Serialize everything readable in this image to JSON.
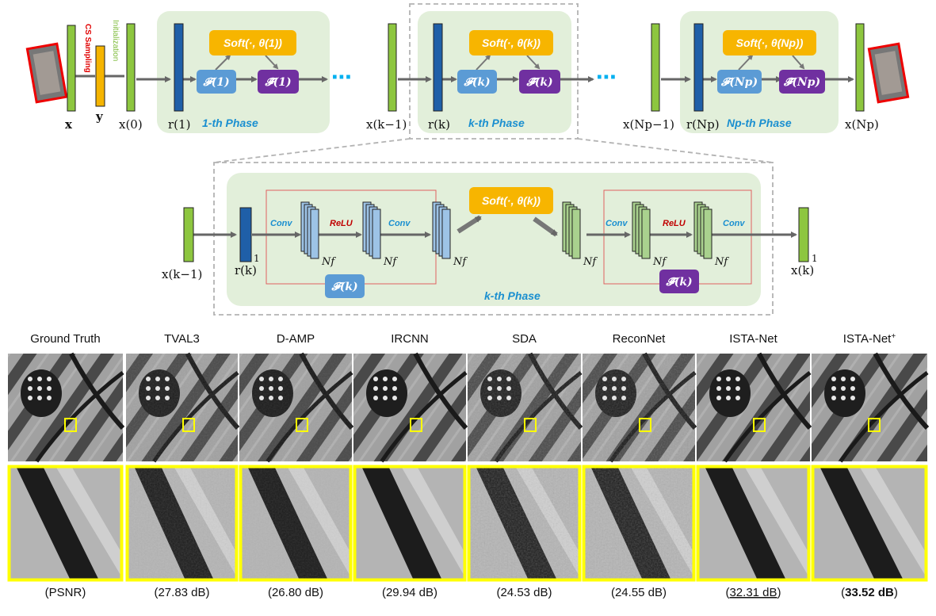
{
  "colors": {
    "phase_bg": "#e2efda",
    "green_bar": "#8dc63f",
    "blue_bar": "#1f5fa8",
    "orange": "#f5b400",
    "soft_box": "#f7b500",
    "fwd_box": "#5b9bd5",
    "inv_box": "#7030a0",
    "phase_text": "#1a8fd0",
    "relu_text": "#c00000",
    "highlight": "#ffff00"
  },
  "top": {
    "labels": {
      "x": "x",
      "y": "y",
      "x0": "x(0)",
      "r1": "r(1)",
      "xk1": "x(k−1)",
      "rk": "r(k)",
      "xnp1": "x(Np−1)",
      "rnp": "r(Np)",
      "xnp": "x(Np)"
    },
    "vert_cs": "CS Sampling",
    "vert_init": "Initialization",
    "ellipsis": "⋯",
    "phases": [
      {
        "title": "1-th Phase",
        "soft": "Soft(·, θ(1))",
        "fwd": "𝓕(1)",
        "inv": "𝓕̃(1)"
      },
      {
        "title": "k-th Phase",
        "soft": "Soft(·, θ(k))",
        "fwd": "𝓕(k)",
        "inv": "𝓕̃(k)"
      },
      {
        "title": "Np-th Phase",
        "soft": "Soft(·, θ(Np))",
        "fwd": "𝓕(Np)",
        "inv": "𝓕̃(Np)"
      }
    ]
  },
  "detail": {
    "title": "k-th Phase",
    "in_label": "x(k−1)",
    "r_label": "r(k)",
    "out_label": "x(k)",
    "one": "1",
    "conv": "Conv",
    "relu": "ReLU",
    "nf": "Nf",
    "soft": "Soft(·, θ(k))",
    "fwd": "𝓕(k)",
    "inv": "𝓕̃(k)"
  },
  "comparison": {
    "methods": [
      "Ground Truth",
      "TVAL3",
      "D-AMP",
      "IRCNN",
      "SDA",
      "ReconNet",
      "ISTA-Net",
      "ISTA-Net+"
    ],
    "psnr": [
      "(PSNR)",
      "(27.83 dB)",
      "(26.80 dB)",
      "(29.94 dB)",
      "(24.53 dB)",
      "(24.55 dB)",
      "(32.31 dB)",
      "(33.52 dB)"
    ],
    "style": [
      "normal",
      "normal",
      "normal",
      "normal",
      "normal",
      "normal",
      "underline",
      "bold"
    ],
    "noise": [
      0,
      2,
      1,
      0,
      4,
      4,
      0,
      0
    ]
  }
}
